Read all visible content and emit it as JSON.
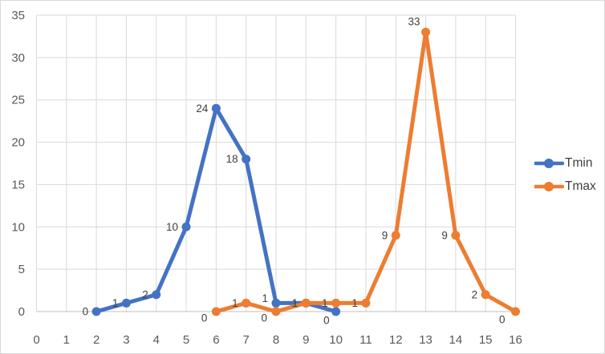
{
  "chart_data": {
    "type": "line",
    "title": "",
    "xlabel": "",
    "ylabel": "",
    "xlim": [
      0,
      16
    ],
    "ylim": [
      0,
      35
    ],
    "x_ticks": [
      0,
      1,
      2,
      3,
      4,
      5,
      6,
      7,
      8,
      9,
      10,
      11,
      12,
      13,
      14,
      15,
      16
    ],
    "y_ticks": [
      0,
      5,
      10,
      15,
      20,
      25,
      30,
      35
    ],
    "grid": true,
    "legend_position": "right",
    "series": [
      {
        "name": "Tmin",
        "color": "#4472C4",
        "x": [
          2,
          3,
          4,
          5,
          6,
          7,
          8,
          9,
          10
        ],
        "values": [
          0,
          1,
          2,
          10,
          24,
          18,
          1,
          1,
          0
        ],
        "label_offsets": {
          "8": [
            0,
            -6
          ],
          "10": [
            2,
            11
          ]
        }
      },
      {
        "name": "Tmax",
        "color": "#ED7D31",
        "x": [
          6,
          7,
          8,
          9,
          10,
          11,
          12,
          13,
          14,
          15,
          16
        ],
        "values": [
          0,
          1,
          0,
          1,
          1,
          1,
          9,
          33,
          9,
          2,
          0
        ],
        "label_offsets": {
          "6": [
            -1,
            8
          ],
          "8": [
            -1,
            8
          ],
          "13": [
            3,
            -13
          ],
          "16": [
            -3,
            10
          ]
        }
      }
    ],
    "colors": {
      "gridline": "#D9D9D9",
      "axis_line": "#BFBFBF",
      "tick_label": "#595959",
      "data_label": "#404040",
      "legend_text": "#404040",
      "background": "#FFFFFF",
      "chart_border": "#D9D9D9"
    }
  }
}
